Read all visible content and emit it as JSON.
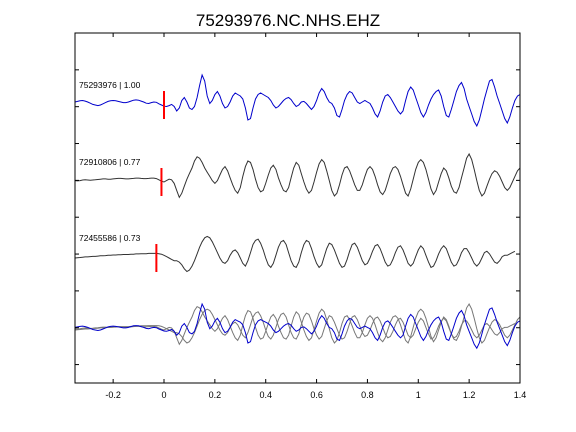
{
  "chart_data": {
    "type": "line",
    "title": "75293976.NC.NHS.EHZ",
    "xlabel": "",
    "ylabel": "",
    "xlim": [
      -0.35,
      1.4
    ],
    "xticks": [
      -0.2,
      0,
      0.2,
      0.4,
      0.6,
      0.8,
      1,
      1.2,
      1.4
    ],
    "xtick_labels": [
      "-0.2",
      "0",
      "0.2",
      "0.4",
      "0.6",
      "0.8",
      "1",
      "1.2",
      "1.4"
    ],
    "grid": false,
    "colors": {
      "primary": "#0000cc",
      "others": "#333333",
      "overlay_others": "#777777",
      "pick": "#ff0000"
    },
    "traces": [
      {
        "label": "75293976 | 1.00",
        "color": "#0000cc",
        "pick_time": 0.0,
        "sample_interval": 0.01,
        "amplitudes": [
          0.1,
          0.12,
          0.14,
          0.15,
          0.13,
          0.1,
          0.06,
          0.02,
          0.0,
          -0.02,
          0.0,
          0.04,
          0.08,
          0.12,
          0.14,
          0.15,
          0.14,
          0.12,
          0.1,
          0.08,
          0.08,
          0.1,
          0.13,
          0.16,
          0.17,
          0.16,
          0.13,
          0.1,
          0.06,
          0.05,
          0.08,
          0.1,
          0.09,
          0.04,
          0.0,
          -0.04,
          -0.05,
          -0.02,
          0.02,
          -0.05,
          -0.2,
          -0.1,
          0.15,
          0.25,
          0.1,
          -0.1,
          -0.15,
          -0.05,
          0.25,
          0.65,
          1.0,
          0.8,
          0.3,
          0.05,
          0.15,
          0.35,
          0.45,
          0.3,
          0.05,
          -0.1,
          -0.05,
          0.1,
          0.3,
          0.4,
          0.35,
          0.3,
          0.2,
          -0.1,
          -0.5,
          -0.45,
          -0.1,
          0.2,
          0.35,
          0.4,
          0.35,
          0.3,
          0.25,
          0.15,
          0.0,
          -0.1,
          -0.05,
          0.05,
          0.15,
          0.22,
          0.25,
          0.18,
          0.05,
          -0.05,
          0.0,
          0.1,
          0.12,
          0.05,
          -0.05,
          -0.15,
          -0.05,
          0.15,
          0.4,
          0.55,
          0.45,
          0.25,
          0.1,
          0.05,
          -0.1,
          -0.35,
          -0.4,
          -0.15,
          0.15,
          0.35,
          0.45,
          0.4,
          0.25,
          0.1,
          0.05,
          0.1,
          0.15,
          0.1,
          0.05,
          -0.1,
          -0.3,
          -0.4,
          -0.2,
          0.1,
          0.3,
          0.35,
          0.25,
          0.1,
          -0.05,
          -0.2,
          -0.3,
          -0.2,
          0.15,
          0.45,
          0.6,
          0.5,
          0.25,
          0.0,
          -0.25,
          -0.4,
          -0.25,
          0.0,
          0.2,
          0.35,
          0.45,
          0.5,
          0.3,
          -0.05,
          -0.35,
          -0.4,
          -0.15,
          0.15,
          0.45,
          0.65,
          0.75,
          0.55,
          0.2,
          -0.05,
          -0.3,
          -0.55,
          -0.7,
          -0.5,
          -0.15,
          0.2,
          0.5,
          0.8,
          0.85,
          0.6,
          0.3,
          0.05,
          -0.2,
          -0.45,
          -0.6,
          -0.4,
          -0.1,
          0.15,
          0.3,
          0.35,
          0.4,
          0.45,
          0.5,
          0.55
        ]
      },
      {
        "label": "72910806 | 0.77",
        "color": "#333333",
        "pick_time": -0.01,
        "sample_interval": 0.01,
        "amplitudes": [
          0.05,
          0.04,
          0.05,
          0.07,
          0.08,
          0.07,
          0.06,
          0.07,
          0.08,
          0.09,
          0.1,
          0.11,
          0.11,
          0.1,
          0.1,
          0.11,
          0.12,
          0.13,
          0.13,
          0.12,
          0.11,
          0.11,
          0.12,
          0.13,
          0.14,
          0.14,
          0.13,
          0.12,
          0.12,
          0.13,
          0.14,
          0.14,
          0.12,
          0.08,
          0.03,
          0.0,
          0.05,
          0.1,
          0.08,
          -0.05,
          -0.3,
          -0.55,
          -0.4,
          -0.15,
          0.1,
          0.3,
          0.5,
          0.75,
          0.9,
          0.85,
          0.7,
          0.5,
          0.35,
          0.2,
          0.05,
          -0.05,
          0.05,
          0.25,
          0.45,
          0.55,
          0.4,
          0.15,
          -0.1,
          -0.3,
          -0.4,
          -0.2,
          0.2,
          0.55,
          0.75,
          0.7,
          0.45,
          0.1,
          -0.2,
          -0.35,
          -0.3,
          -0.05,
          0.25,
          0.5,
          0.6,
          0.45,
          0.15,
          -0.1,
          -0.3,
          -0.35,
          -0.2,
          0.15,
          0.5,
          0.7,
          0.6,
          0.3,
          0.0,
          -0.25,
          -0.4,
          -0.3,
          0.0,
          0.35,
          0.65,
          0.8,
          0.7,
          0.4,
          0.05,
          -0.3,
          -0.5,
          -0.4,
          -0.1,
          0.25,
          0.5,
          0.55,
          0.4,
          0.15,
          -0.1,
          -0.3,
          -0.3,
          -0.1,
          0.2,
          0.45,
          0.55,
          0.45,
          0.2,
          -0.1,
          -0.35,
          -0.45,
          -0.3,
          0.0,
          0.3,
          0.5,
          0.55,
          0.45,
          0.2,
          -0.1,
          -0.4,
          -0.5,
          -0.25,
          0.1,
          0.45,
          0.7,
          0.8,
          0.7,
          0.45,
          0.1,
          -0.25,
          -0.45,
          -0.3,
          0.0,
          0.3,
          0.5,
          0.4,
          0.15,
          -0.15,
          -0.35,
          -0.4,
          -0.2,
          0.15,
          0.5,
          0.85,
          1.0,
          0.8,
          0.45,
          0.05,
          -0.3,
          -0.5,
          -0.4,
          -0.15,
          0.1,
          0.3,
          0.4,
          0.35,
          0.2,
          0.0,
          -0.2,
          -0.3,
          -0.2,
          0.0,
          0.2,
          0.4,
          0.5,
          0.45,
          0.35
        ]
      },
      {
        "label": "72455586 | 0.73",
        "color": "#333333",
        "pick_time": -0.03,
        "sample_interval": 0.01,
        "amplitudes": [
          0.0,
          0.01,
          0.02,
          0.03,
          0.04,
          0.04,
          0.05,
          0.06,
          0.06,
          0.07,
          0.08,
          0.08,
          0.09,
          0.1,
          0.1,
          0.11,
          0.11,
          0.12,
          0.12,
          0.13,
          0.13,
          0.13,
          0.14,
          0.14,
          0.15,
          0.15,
          0.16,
          0.16,
          0.16,
          0.17,
          0.17,
          0.17,
          0.17,
          0.16,
          0.14,
          0.1,
          0.05,
          0.0,
          -0.05,
          -0.1,
          -0.1,
          -0.15,
          -0.25,
          -0.4,
          -0.5,
          -0.45,
          -0.3,
          -0.1,
          0.15,
          0.4,
          0.6,
          0.75,
          0.8,
          0.75,
          0.6,
          0.4,
          0.2,
          0.0,
          -0.15,
          -0.2,
          -0.1,
          0.1,
          0.25,
          0.3,
          0.2,
          0.0,
          -0.2,
          -0.3,
          -0.1,
          0.2,
          0.5,
          0.65,
          0.7,
          0.55,
          0.3,
          0.0,
          -0.25,
          -0.35,
          -0.2,
          0.1,
          0.4,
          0.6,
          0.65,
          0.5,
          0.2,
          -0.1,
          -0.3,
          -0.35,
          -0.15,
          0.2,
          0.5,
          0.65,
          0.6,
          0.35,
          0.05,
          -0.2,
          -0.35,
          -0.25,
          0.05,
          0.35,
          0.55,
          0.5,
          0.3,
          0.05,
          -0.2,
          -0.35,
          -0.3,
          -0.05,
          0.25,
          0.5,
          0.55,
          0.4,
          0.15,
          -0.1,
          -0.25,
          -0.2,
          0.0,
          0.25,
          0.45,
          0.5,
          0.35,
          0.1,
          -0.15,
          -0.3,
          -0.25,
          -0.05,
          0.2,
          0.4,
          0.45,
          0.3,
          0.05,
          -0.2,
          -0.3,
          -0.2,
          0.05,
          0.3,
          0.45,
          0.35,
          0.1,
          -0.15,
          -0.35,
          -0.3,
          -0.1,
          0.15,
          0.35,
          0.45,
          0.35,
          0.1,
          -0.15,
          -0.3,
          -0.25,
          -0.05,
          0.2,
          0.35,
          0.35,
          0.2,
          0.0,
          -0.2,
          -0.3,
          -0.2,
          0.0,
          0.2,
          0.25,
          0.15,
          0.0,
          -0.15,
          -0.2,
          -0.1,
          0.05,
          0.1,
          0.1,
          0.15,
          0.2,
          0.25
        ]
      }
    ]
  }
}
